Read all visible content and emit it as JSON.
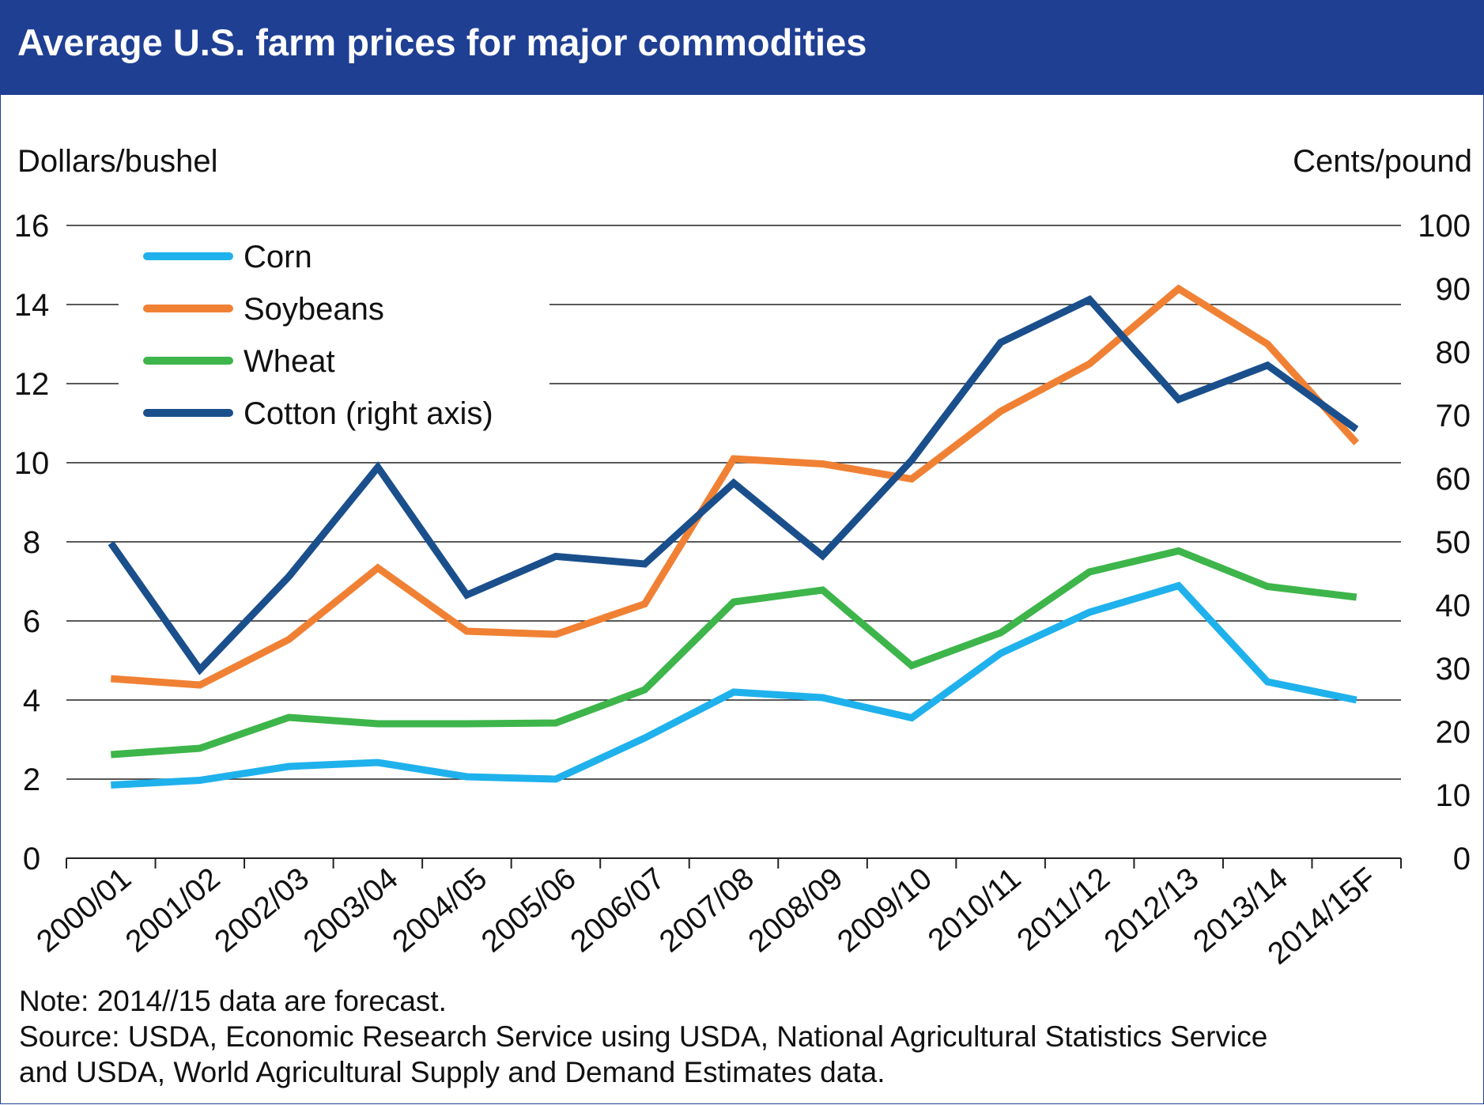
{
  "title": "Average U.S. farm prices for major commodities",
  "note": "Note:  2014//15 data are forecast.",
  "source_line1": "Source: USDA, Economic Research Service using USDA, National Agricultural Statistics Service",
  "source_line2": "and USDA, World Agricultural Supply and Demand Estimates data.",
  "colors": {
    "header": "#1f3f93",
    "corn": "#1fb1ec",
    "soybeans": "#f08134",
    "wheat": "#3db54a",
    "cotton": "#1a4f8c"
  },
  "chart_data": {
    "type": "line",
    "ylabel_left": "Dollars/bushel",
    "ylabel_right": "Cents/pound",
    "ylim_left": [
      0,
      16
    ],
    "ylim_right": [
      0,
      100
    ],
    "yticks_left": [
      "0",
      "2",
      "4",
      "6",
      "8",
      "10",
      "12",
      "14",
      "16"
    ],
    "yticks_right": [
      "0",
      "10",
      "20",
      "30",
      "40",
      "50",
      "60",
      "70",
      "80",
      "90",
      "100"
    ],
    "grid": "horizontal",
    "legend_position": "top-left",
    "categories": [
      "2000/01",
      "2001/02",
      "2002/03",
      "2003/04",
      "2004/05",
      "2005/06",
      "2006/07",
      "2007/08",
      "2008/09",
      "2009/10",
      "2010/11",
      "2011/12",
      "2012/13",
      "2013/14",
      "2014/15F"
    ],
    "series": [
      {
        "name": "Corn",
        "axis": "left",
        "color": "#1fb1ec",
        "values": [
          1.85,
          1.97,
          2.32,
          2.42,
          2.06,
          2.0,
          3.04,
          4.2,
          4.06,
          3.55,
          5.18,
          6.22,
          6.89,
          4.46,
          4.0
        ]
      },
      {
        "name": "Soybeans",
        "axis": "left",
        "color": "#f08134",
        "values": [
          4.54,
          4.38,
          5.53,
          7.34,
          5.74,
          5.66,
          6.43,
          10.1,
          9.97,
          9.59,
          11.3,
          12.5,
          14.4,
          13.0,
          10.5
        ]
      },
      {
        "name": "Wheat",
        "axis": "left",
        "color": "#3db54a",
        "values": [
          2.62,
          2.78,
          3.56,
          3.4,
          3.4,
          3.42,
          4.26,
          6.48,
          6.78,
          4.87,
          5.7,
          7.24,
          7.77,
          6.87,
          6.6
        ]
      },
      {
        "name": "Cotton (right axis)",
        "axis": "right",
        "color": "#1a4f8c",
        "values": [
          49.8,
          29.8,
          44.5,
          61.8,
          41.6,
          47.7,
          46.5,
          59.3,
          47.8,
          62.9,
          81.5,
          88.3,
          72.5,
          77.9,
          67.8
        ]
      }
    ]
  }
}
